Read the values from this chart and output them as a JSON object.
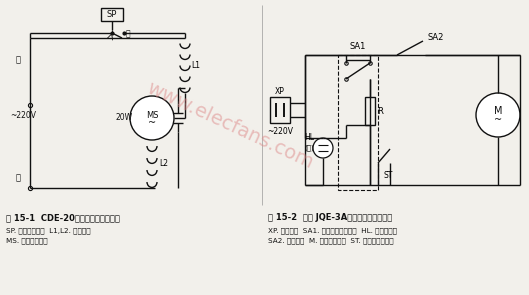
{
  "bg_color": "#f2f0eb",
  "watermark": "www.elecfans.com",
  "fig1_label": "图 15-1  CDE-20型电动果汁机电路图",
  "fig1_desc1": "SP. 手动压力开关  L1,L2. 定于绕组",
  "fig1_desc2": "MS. 水磁同步电机",
  "fig2_label": "图 15-2  裕丰 JQE-3A榨汁、搅拌机电路图",
  "fig2_desc1": "XP. 电源插头  SA1. 带指示灯电源开关  HL. 电源指示灯",
  "fig2_desc2": "SA2. 联锁开关  M. 串激式电动机  ST. 自动复位温控器"
}
